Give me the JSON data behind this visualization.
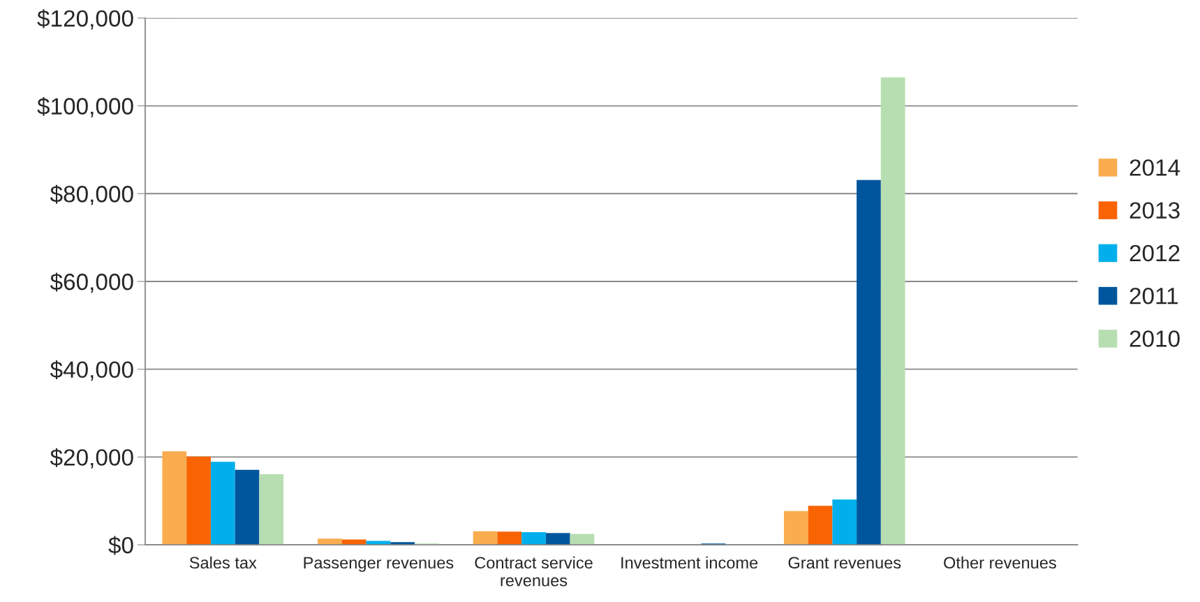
{
  "chart_data": {
    "type": "bar",
    "categories": [
      "Sales tax",
      "Passenger revenues",
      "Contract service\nrevenues",
      "Investment income",
      "Grant revenues",
      "Other revenues"
    ],
    "series": [
      {
        "name": "2014",
        "color": "#f9ad4e",
        "values": [
          21300,
          1400,
          3100,
          0,
          7700,
          0
        ]
      },
      {
        "name": "2013",
        "color": "#f96302",
        "values": [
          20100,
          1200,
          3000,
          0,
          8900,
          0
        ]
      },
      {
        "name": "2012",
        "color": "#00afec",
        "values": [
          18900,
          900,
          2900,
          0,
          10300,
          0
        ]
      },
      {
        "name": "2011",
        "color": "#00569d",
        "values": [
          17100,
          600,
          2700,
          300,
          83100,
          null
        ]
      },
      {
        "name": "2010",
        "color": "#b7deb1",
        "values": [
          16100,
          300,
          2500,
          0,
          106500,
          null
        ]
      }
    ],
    "ylim": [
      0,
      120000
    ],
    "yticks": [
      {
        "value": 0,
        "label": "$0"
      },
      {
        "value": 20000,
        "label": "$20,000"
      },
      {
        "value": 40000,
        "label": "$40,000"
      },
      {
        "value": 60000,
        "label": "$60,000"
      },
      {
        "value": 80000,
        "label": "$80,000"
      },
      {
        "value": 100000,
        "label": "$100,000"
      },
      {
        "value": 120000,
        "label": "$120,000"
      }
    ],
    "grid": "y",
    "legend": "right"
  }
}
